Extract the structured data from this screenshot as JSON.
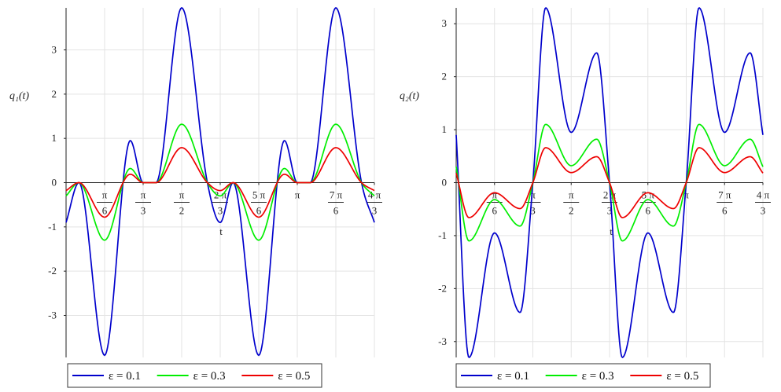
{
  "chart_data": [
    {
      "type": "line",
      "ylabel": "q₁(t)",
      "xlabel": "t",
      "xlim": [
        0,
        4.18879
      ],
      "ylim": [
        -3.95,
        3.95
      ],
      "y_ticks": [
        "-3",
        "-2",
        "-1",
        "0",
        "1",
        "2",
        "3"
      ],
      "x_ticks": [
        {
          "num": "π",
          "den": "6"
        },
        {
          "num": "π",
          "den": "3"
        },
        {
          "num": "π",
          "den": "2"
        },
        {
          "num": "2 π",
          "den": "3"
        },
        {
          "num": "5 π",
          "den": "6"
        },
        {
          "num": "π",
          "den": ""
        },
        {
          "num": "7 π",
          "den": "6"
        },
        {
          "num": "4 π",
          "den": "3"
        }
      ],
      "series": [
        {
          "name": "ε = 0.1",
          "color": "#0000cc",
          "x": [
            0,
            0.1745,
            0.5236,
            0.8727,
            1.0472,
            1.2217,
            1.5708,
            1.9199,
            2.0944,
            2.2689,
            2.618,
            2.9671,
            3.1416,
            3.3161,
            3.6652,
            4.0143,
            4.1888
          ],
          "y": [
            -0.9,
            0,
            -3.9,
            0.95,
            0,
            0,
            3.95,
            0,
            -0.9,
            0,
            -3.9,
            0.95,
            0,
            0,
            3.95,
            0,
            -0.9
          ]
        },
        {
          "name": "ε = 0.3",
          "color": "#00ee00",
          "x": [
            0,
            0.1745,
            0.5236,
            0.8727,
            1.0472,
            1.2217,
            1.5708,
            1.9199,
            2.0944,
            2.2689,
            2.618,
            2.9671,
            3.1416,
            3.3161,
            3.6652,
            4.0143,
            4.1888
          ],
          "y": [
            -0.3,
            0,
            -1.3,
            0.32,
            0,
            0,
            1.32,
            0,
            -0.3,
            0,
            -1.3,
            0.32,
            0,
            0,
            1.32,
            0,
            -0.3
          ]
        },
        {
          "name": "ε = 0.5",
          "color": "#ee0000",
          "x": [
            0,
            0.1745,
            0.5236,
            0.8727,
            1.0472,
            1.2217,
            1.5708,
            1.9199,
            2.0944,
            2.2689,
            2.618,
            2.9671,
            3.1416,
            3.3161,
            3.6652,
            4.0143,
            4.1888
          ],
          "y": [
            -0.18,
            0,
            -0.78,
            0.19,
            0,
            0,
            0.79,
            0,
            -0.18,
            0,
            -0.78,
            0.19,
            0,
            0,
            0.79,
            0,
            -0.18
          ]
        }
      ],
      "legend_position": "bottom"
    },
    {
      "type": "line",
      "ylabel": "q₂(t)",
      "xlabel": "t",
      "xlim": [
        0,
        4.18879
      ],
      "ylim": [
        -3.3,
        3.3
      ],
      "y_ticks": [
        "-3",
        "-2",
        "-1",
        "0",
        "1",
        "2",
        "3"
      ],
      "x_ticks": [
        {
          "num": "π",
          "den": "6"
        },
        {
          "num": "π",
          "den": "3"
        },
        {
          "num": "π",
          "den": "2"
        },
        {
          "num": "2 π",
          "den": "3"
        },
        {
          "num": "5 π",
          "den": "6"
        },
        {
          "num": "π",
          "den": ""
        },
        {
          "num": "7 π",
          "den": "6"
        },
        {
          "num": "4 π",
          "den": "3"
        }
      ],
      "series": [
        {
          "name": "ε = 0.1",
          "color": "#0000cc",
          "x": [
            0,
            0.1745,
            0.5236,
            0.8727,
            1.0472,
            1.2217,
            1.5708,
            1.9199,
            2.0944,
            2.2689,
            2.618,
            2.9671,
            3.1416,
            3.3161,
            3.6652,
            4.0143,
            4.1888
          ],
          "y": [
            0.9,
            -3.3,
            -0.95,
            -2.45,
            0,
            3.3,
            0.95,
            2.45,
            0,
            -3.3,
            -0.95,
            -2.45,
            0,
            3.3,
            0.95,
            2.45,
            0.9
          ]
        },
        {
          "name": "ε = 0.3",
          "color": "#00ee00",
          "x": [
            0,
            0.1745,
            0.5236,
            0.8727,
            1.0472,
            1.2217,
            1.5708,
            1.9199,
            2.0944,
            2.2689,
            2.618,
            2.9671,
            3.1416,
            3.3161,
            3.6652,
            4.0143,
            4.1888
          ],
          "y": [
            0.3,
            -1.1,
            -0.32,
            -0.82,
            0,
            1.1,
            0.32,
            0.82,
            0,
            -1.1,
            -0.32,
            -0.82,
            0,
            1.1,
            0.32,
            0.82,
            0.3
          ]
        },
        {
          "name": "ε = 0.5",
          "color": "#ee0000",
          "x": [
            0,
            0.1745,
            0.5236,
            0.8727,
            1.0472,
            1.2217,
            1.5708,
            1.9199,
            2.0944,
            2.2689,
            2.618,
            2.9671,
            3.1416,
            3.3161,
            3.6652,
            4.0143,
            4.1888
          ],
          "y": [
            0.18,
            -0.66,
            -0.19,
            -0.49,
            0,
            0.66,
            0.19,
            0.49,
            0,
            -0.66,
            -0.19,
            -0.49,
            0,
            0.66,
            0.19,
            0.49,
            0.18
          ]
        }
      ],
      "legend_position": "bottom"
    }
  ]
}
